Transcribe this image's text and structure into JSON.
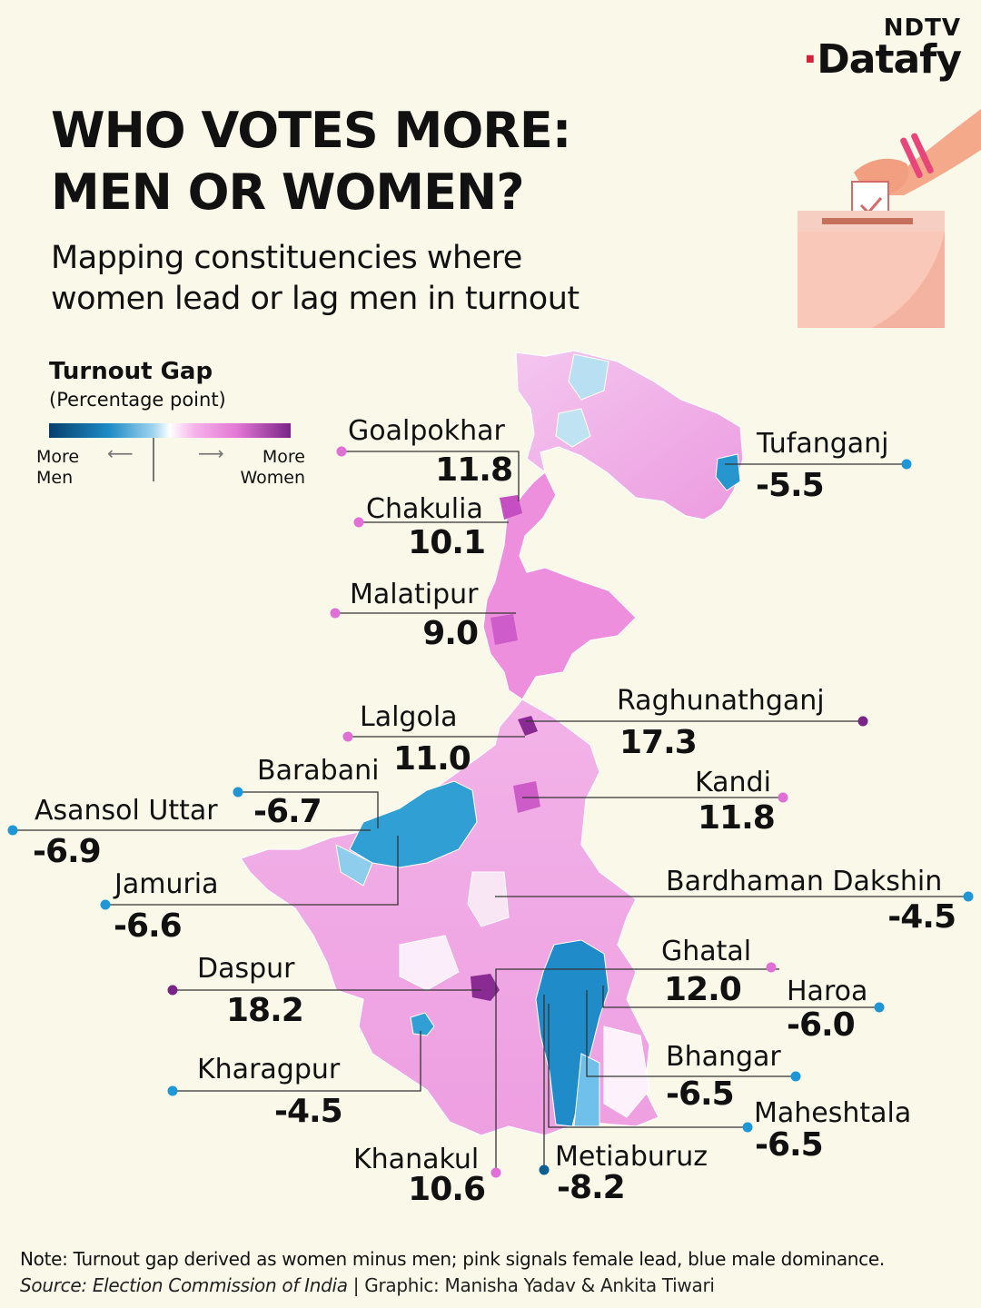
{
  "brand": {
    "top": "NDTV",
    "main": "Datafy"
  },
  "title": {
    "line1": "WHO VOTES MORE:",
    "line2": "MEN OR WOMEN?"
  },
  "subtitle": {
    "line1": "Mapping constituencies where",
    "line2": "women lead or lag men in turnout"
  },
  "legend": {
    "title": "Turnout Gap",
    "unit": "(Percentage point)",
    "left_line1": "More",
    "left_line2": "Men",
    "right_line1": "More",
    "right_line2": "Women",
    "colors": {
      "men_max": "#063e6e",
      "men": "#1d8cc6",
      "neutral": "#ffffff",
      "women": "#e276d4",
      "women_max": "#7a2487"
    }
  },
  "constituencies": [
    {
      "name": "Goalpokhar",
      "value": "11.8"
    },
    {
      "name": "Chakulia",
      "value": "10.1"
    },
    {
      "name": "Malatipur",
      "value": "9.0"
    },
    {
      "name": "Lalgola",
      "value": "11.0"
    },
    {
      "name": "Barabani",
      "value": "-6.7"
    },
    {
      "name": "Asansol Uttar",
      "value": "-6.9"
    },
    {
      "name": "Jamuria",
      "value": "-6.6"
    },
    {
      "name": "Daspur",
      "value": "18.2"
    },
    {
      "name": "Kharagpur",
      "value": "-4.5"
    },
    {
      "name": "Khanakul",
      "value": "10.6"
    },
    {
      "name": "Metiaburuz",
      "value": "-8.2"
    },
    {
      "name": "Tufanganj",
      "value": "-5.5"
    },
    {
      "name": "Raghunathganj",
      "value": "17.3"
    },
    {
      "name": "Kandi",
      "value": "11.8"
    },
    {
      "name": "Bardhaman Dakshin",
      "value": "-4.5"
    },
    {
      "name": "Ghatal",
      "value": "12.0"
    },
    {
      "name": "Haroa",
      "value": "-6.0"
    },
    {
      "name": "Bhangar",
      "value": "-6.5"
    },
    {
      "name": "Maheshtala",
      "value": "-6.5"
    }
  ],
  "footer": {
    "note": "Note: Turnout gap derived as women minus men; pink signals female lead, blue male dominance.",
    "source_label": "Source: Election Commission of India",
    "credit": " | Graphic: Manisha Yadav & Ankita Tiwari"
  }
}
